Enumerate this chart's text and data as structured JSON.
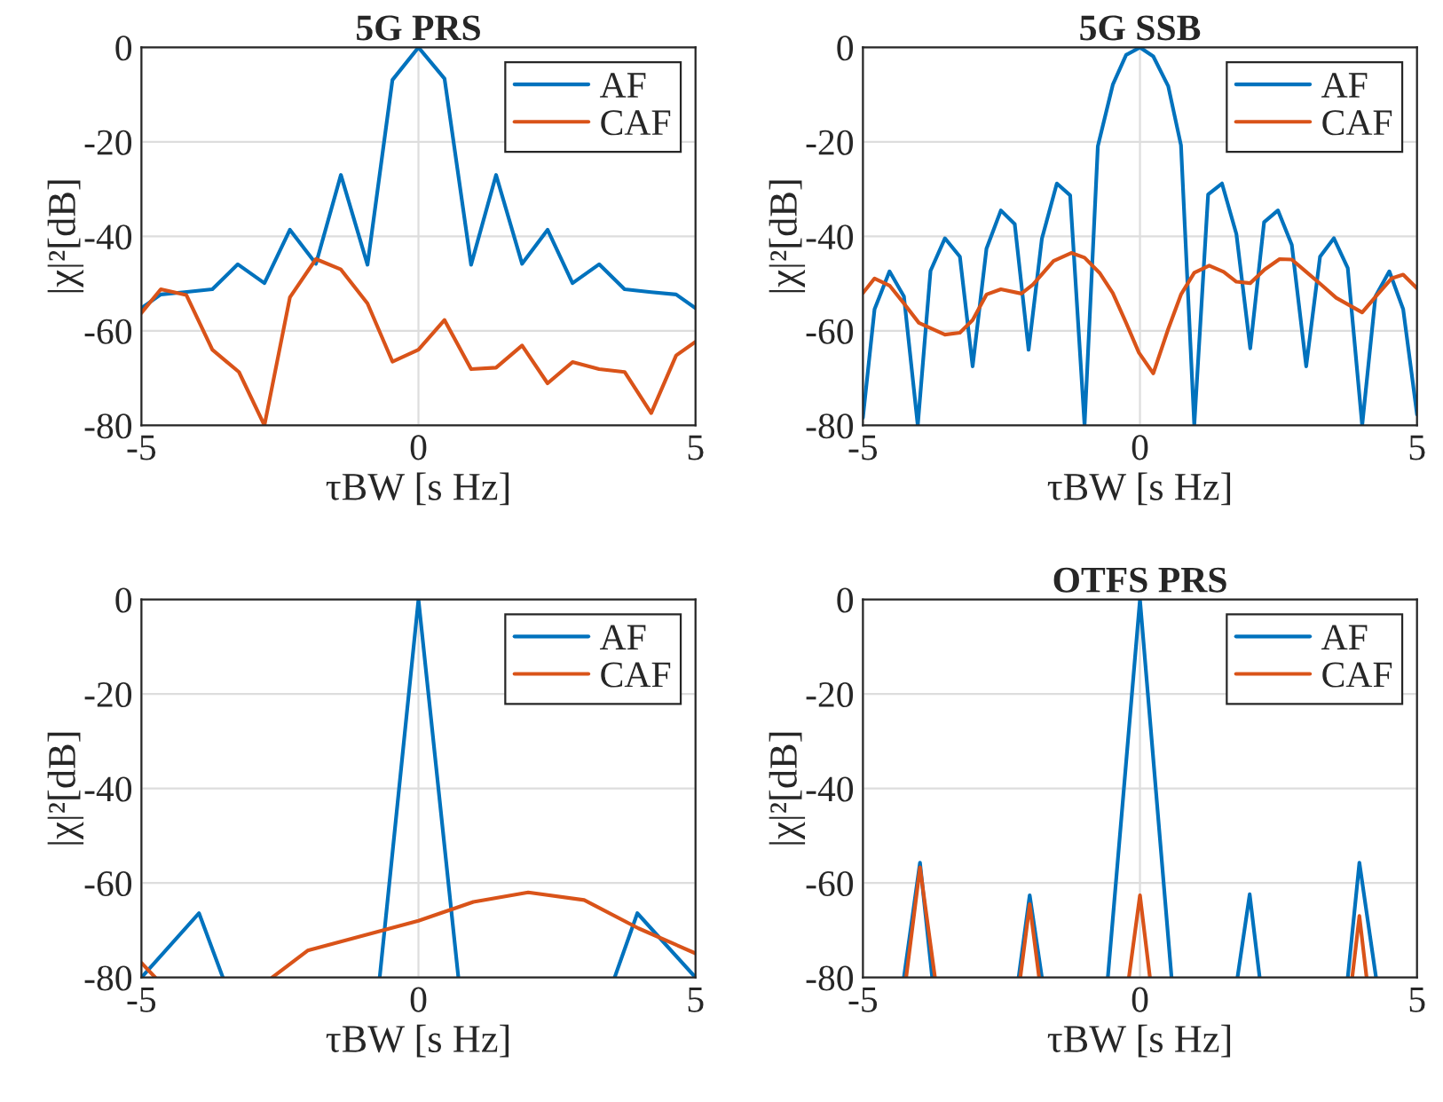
{
  "chart_data": [
    {
      "type": "line",
      "title": "5G PRS",
      "xlabel": "τBW [s Hz]",
      "ylabel": "|χ|²[dB]",
      "xlim": [
        -5,
        5
      ],
      "xticks": [
        -5,
        0,
        5
      ],
      "ylim": [
        -80,
        0
      ],
      "yticks": [
        -80,
        -60,
        -40,
        -20,
        0
      ],
      "grid": true,
      "legend": "top right",
      "series": [
        {
          "name": "AF",
          "color": "#0072bd",
          "x": [
            -5,
            -4.65,
            -4.22,
            -3.72,
            -3.26,
            -2.78,
            -2.32,
            -1.85,
            -1.4,
            -0.92,
            -0.47,
            0,
            0.47,
            0.95,
            1.4,
            1.87,
            2.33,
            2.78,
            3.26,
            3.72,
            4.2,
            4.65,
            5
          ],
          "values": [
            -55.2,
            -52.3,
            -51.8,
            -51.2,
            -45.9,
            -49.9,
            -38.6,
            -45.8,
            -27,
            -46,
            -6.9,
            0,
            -6.6,
            -46,
            -27,
            -45.8,
            -38.6,
            -49.9,
            -45.9,
            -51.2,
            -51.8,
            -52.3,
            -55.2
          ]
        },
        {
          "name": "CAF",
          "color": "#d95319",
          "x": [
            -5,
            -4.65,
            -4.19,
            -3.72,
            -3.24,
            -2.78,
            -2.32,
            -1.85,
            -1.4,
            -0.92,
            -0.47,
            0,
            0.47,
            0.95,
            1.4,
            1.87,
            2.33,
            2.78,
            3.26,
            3.72,
            4.2,
            4.65,
            5
          ],
          "values": [
            -56.2,
            -51.2,
            -52.4,
            -64,
            -68.7,
            -80,
            -52.9,
            -44.8,
            -47,
            -54.2,
            -66.5,
            -64,
            -57.7,
            -68.1,
            -67.8,
            -63.1,
            -71.1,
            -66.6,
            -68.1,
            -68.7,
            -77.4,
            -65.2,
            -62.3
          ]
        }
      ]
    },
    {
      "type": "line",
      "title": "5G SSB",
      "xlabel": "τBW [s Hz]",
      "ylabel": "|χ|²[dB]",
      "xlim": [
        -5,
        5
      ],
      "xticks": [
        -5,
        0,
        5
      ],
      "ylim": [
        -80,
        0
      ],
      "yticks": [
        -80,
        -60,
        -40,
        -20,
        0
      ],
      "grid": true,
      "legend": "top right",
      "series": [
        {
          "name": "AF",
          "color": "#0072bd",
          "x": [
            -5,
            -4.79,
            -4.52,
            -4.26,
            -4.01,
            -3.78,
            -3.52,
            -3.25,
            -3.02,
            -2.77,
            -2.51,
            -2.26,
            -2.01,
            -1.77,
            -1.5,
            -1.26,
            -1.0,
            -0.76,
            -0.49,
            -0.25,
            0,
            0.24,
            0.51,
            0.74,
            0.98,
            1.23,
            1.48,
            1.74,
            1.99,
            2.24,
            2.49,
            2.74,
            3.0,
            3.25,
            3.5,
            3.75,
            4.01,
            4.25,
            4.5,
            4.75,
            5
          ],
          "values": [
            -78.4,
            -55.4,
            -47.4,
            -52.7,
            -80,
            -47.3,
            -40.4,
            -44.3,
            -67.5,
            -42.6,
            -34.5,
            -37.4,
            -64,
            -40.5,
            -28.8,
            -31.3,
            -80,
            -20.9,
            -7.9,
            -1.6,
            0,
            -1.9,
            -8.2,
            -20.7,
            -80,
            -31.1,
            -28.8,
            -39.5,
            -63.7,
            -37,
            -34.5,
            -41.8,
            -67.5,
            -44.3,
            -40.4,
            -46.7,
            -80,
            -52.7,
            -47.4,
            -55.4,
            -77.7
          ]
        },
        {
          "name": "CAF",
          "color": "#d95319",
          "x": [
            -5,
            -4.79,
            -4.52,
            -4.26,
            -3.99,
            -3.52,
            -3.25,
            -3.02,
            -2.77,
            -2.51,
            -2.14,
            -1.93,
            -1.56,
            -1.24,
            -1.0,
            -0.73,
            -0.49,
            -0.25,
            -0.02,
            0.24,
            0.51,
            0.74,
            0.98,
            1.25,
            1.51,
            1.74,
            1.99,
            2.25,
            2.52,
            2.74,
            3.0,
            3.27,
            3.54,
            4.01,
            4.28,
            4.54,
            4.75,
            5
          ],
          "values": [
            -52,
            -48.9,
            -50.4,
            -54.2,
            -58.3,
            -60.8,
            -60.4,
            -57.7,
            -52.3,
            -51.2,
            -52.1,
            -50.2,
            -45.2,
            -43.5,
            -44.5,
            -47.7,
            -52,
            -58.3,
            -64.6,
            -69,
            -59.6,
            -52.3,
            -47.7,
            -46.2,
            -47.5,
            -49.6,
            -49.9,
            -47,
            -44.8,
            -44.9,
            -47.5,
            -50.2,
            -53,
            -56.1,
            -52.4,
            -48.9,
            -48.1,
            -51
          ]
        }
      ]
    },
    {
      "type": "line",
      "xlabel": "τBW [s Hz]",
      "ylabel": "|χ|²[dB]",
      "xlim": [
        -5,
        5
      ],
      "xticks": [
        -5,
        0,
        5
      ],
      "ylim": [
        -80,
        0
      ],
      "yticks": [
        -80,
        -60,
        -40,
        -20,
        0
      ],
      "grid": true,
      "legend": "top right",
      "series": [
        {
          "name": "AF",
          "color": "#0072bd",
          "x": [
            -5,
            -3.96,
            -3.53,
            -2,
            -0.7,
            0,
            0.72,
            2,
            3.54,
            3.95,
            5
          ],
          "values": [
            -80,
            -66.4,
            -80,
            null,
            -80,
            0,
            -80,
            null,
            -80,
            -66.4,
            -80
          ]
        },
        {
          "name": "CAF",
          "color": "#d95319",
          "x": [
            -5,
            -4.75,
            -3.7,
            -2.64,
            -2.0,
            0,
            0.99,
            1.98,
            2.99,
            3.97,
            5
          ],
          "values": [
            -76.9,
            -80,
            null,
            -80,
            -74.3,
            -68,
            -64,
            -62,
            -63.6,
            -69.6,
            -74.9
          ]
        }
      ]
    },
    {
      "type": "line",
      "title": "OTFS PRS",
      "xlabel": "τBW [s Hz]",
      "ylabel": "|χ|²[dB]",
      "xlim": [
        -5,
        5
      ],
      "xticks": [
        -5,
        0,
        5
      ],
      "ylim": [
        -80,
        0
      ],
      "yticks": [
        -80,
        -60,
        -40,
        -20,
        0
      ],
      "grid": true,
      "legend": "top right",
      "series": [
        {
          "name": "AF",
          "color": "#0072bd",
          "x": [
            -4.26,
            -3.97,
            -3.75,
            -3,
            -2.19,
            -1.99,
            -1.77,
            -1,
            -0.58,
            0,
            0.57,
            1,
            1.76,
            1.98,
            2.16,
            3,
            3.75,
            3.96,
            4.26
          ],
          "values": [
            -80,
            -55.7,
            -80,
            null,
            -80,
            -62.6,
            -80,
            null,
            -80,
            0,
            -80,
            null,
            -80,
            -62.4,
            -80,
            null,
            -80,
            -55.7,
            -80
          ]
        },
        {
          "name": "CAF",
          "color": "#d95319",
          "x": [
            -4.22,
            -3.97,
            -3.7,
            -3,
            -2.16,
            -1.99,
            -1.82,
            -1,
            -0.2,
            0,
            0.18,
            2,
            3.83,
            3.96,
            4.09
          ],
          "values": [
            -80,
            -56.7,
            -80,
            null,
            -80,
            -64.5,
            -80,
            null,
            -80,
            -62.6,
            -80,
            null,
            -80,
            -67,
            -80
          ]
        }
      ]
    }
  ]
}
